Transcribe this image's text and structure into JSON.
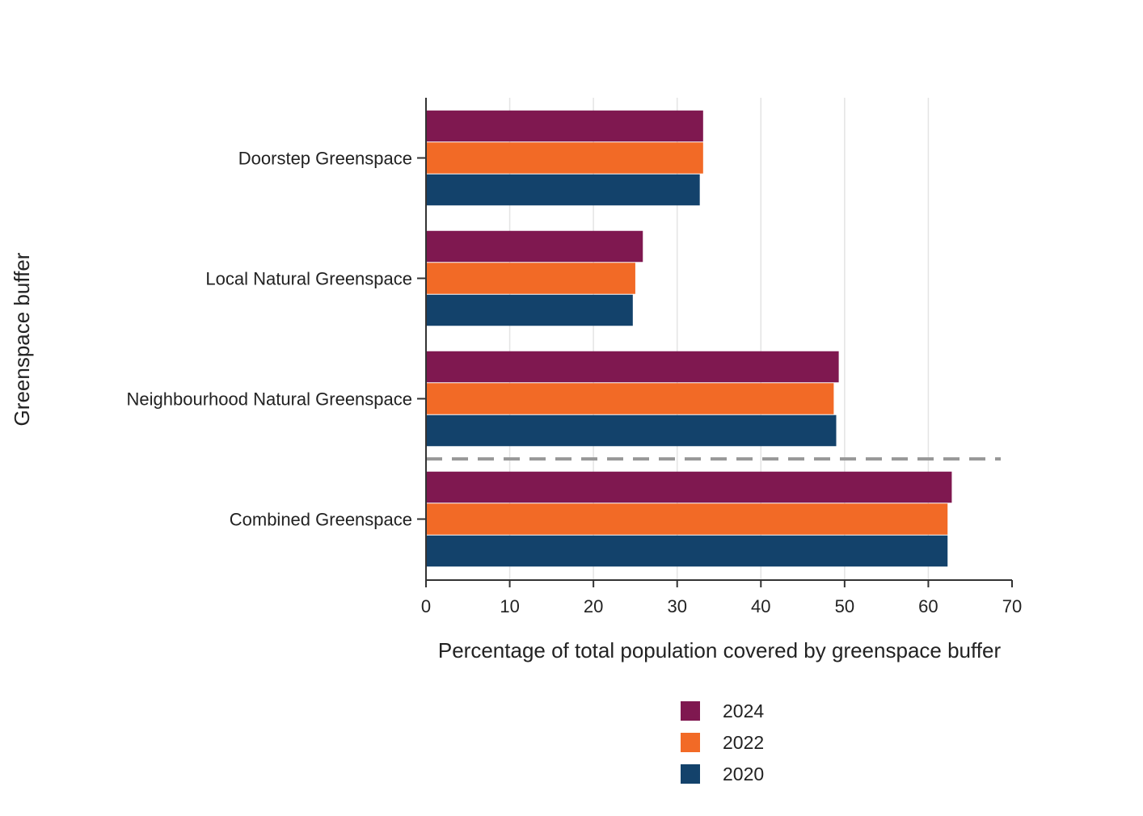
{
  "chart_data": {
    "type": "bar",
    "orientation": "horizontal",
    "categories": [
      "Doorstep Greenspace",
      "Local Natural Greenspace",
      "Neighbourhood Natural Greenspace",
      "Combined Greenspace"
    ],
    "series": [
      {
        "name": "2024",
        "color": "#7f1850",
        "values": [
          33.1,
          25.9,
          49.3,
          62.8
        ]
      },
      {
        "name": "2022",
        "color": "#f26a26",
        "values": [
          33.1,
          25.0,
          48.7,
          62.3
        ]
      },
      {
        "name": "2020",
        "color": "#13426b",
        "values": [
          32.7,
          24.7,
          49.0,
          62.3
        ]
      }
    ],
    "xlabel": "Percentage of total population covered by greenspace buffer",
    "ylabel": "Greenspace buffer",
    "xlim": [
      0,
      70
    ],
    "xticks": [
      "0",
      "10",
      "20",
      "30",
      "40",
      "50",
      "60",
      "70"
    ],
    "grid": "vertical",
    "separator": "dashed line between Neighbourhood Natural Greenspace and Combined Greenspace",
    "legend_position": "bottom"
  }
}
